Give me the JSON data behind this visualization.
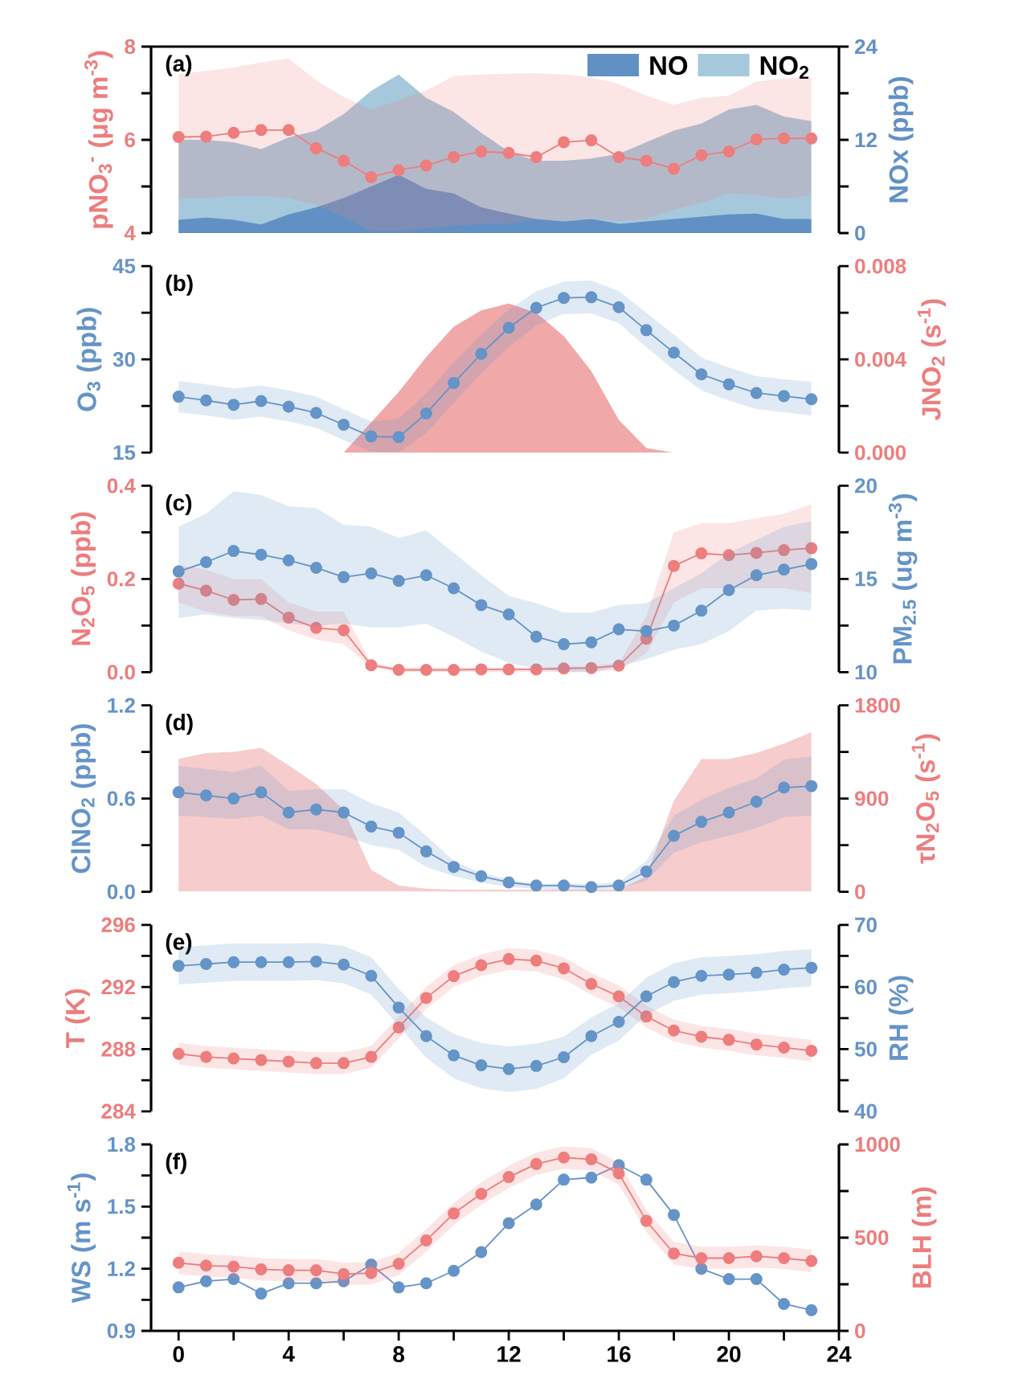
{
  "chart_data": [
    {
      "type": "line",
      "title": "(a)",
      "ylabel": "pNO$_{3}$$^{-}$ (μg m$^{-3}$)",
      "y2label": "NOx (ppb)",
      "x": [
        0,
        1,
        2,
        3,
        4,
        5,
        6,
        7,
        8,
        9,
        10,
        11,
        12,
        13,
        14,
        15,
        16,
        17,
        18,
        19,
        20,
        21,
        22,
        23
      ],
      "xlim": [
        -1,
        24
      ],
      "ylim": [
        4,
        8
      ],
      "yticks": [
        4,
        {
          "value": 5,
          "label": null
        },
        6,
        {
          "value": 7,
          "label": null
        },
        8
      ],
      "y2lim": [
        0,
        24
      ],
      "y2ticks": [
        0,
        {
          "value": 6,
          "label": null
        },
        12,
        {
          "value": 18,
          "label": null
        },
        24
      ],
      "marker": "circle",
      "line_style": "solid",
      "legend": "top right",
      "tick_labels": "y",
      "series": [
        {
          "color": "#ee7d7d",
          "values": [
            6.06,
            6.07,
            6.15,
            6.21,
            6.21,
            5.82,
            5.55,
            5.2,
            5.35,
            5.45,
            5.63,
            5.75,
            5.72,
            5.63,
            5.95,
            5.99,
            5.63,
            5.55,
            5.38,
            5.67,
            5.75,
            6.01,
            6.03,
            6.03
          ],
          "lower": [
            4.75,
            4.75,
            4.8,
            4.8,
            4.75,
            4.6,
            4.35,
            4.05,
            4.05,
            4.1,
            4.15,
            4.2,
            4.2,
            4.3,
            4.25,
            4.32,
            4.25,
            4.3,
            4.5,
            4.65,
            4.85,
            4.82,
            4.74,
            4.8
          ],
          "upper": [
            7.41,
            7.48,
            7.55,
            7.66,
            7.75,
            7.27,
            6.92,
            6.65,
            6.85,
            7.06,
            7.37,
            7.4,
            7.42,
            7.43,
            7.4,
            7.34,
            7.2,
            6.95,
            6.75,
            6.9,
            6.95,
            7.25,
            7.32,
            7.33
          ]
        },
        {
          "name": "NO",
          "type": "area",
          "marker": "none",
          "axis": "y2",
          "color": "#6191c4",
          "values": [
            1.7,
            2.0,
            1.7,
            1.1,
            2.4,
            3.3,
            4.5,
            6.0,
            7.5,
            5.7,
            5.1,
            3.3,
            2.5,
            1.8,
            1.5,
            1.8,
            1.2,
            1.5,
            1.8,
            2.1,
            2.4,
            2.5,
            1.8,
            1.8
          ]
        },
        {
          "name": "NO$_{2}$",
          "type": "area",
          "marker": "none",
          "axis": "y2",
          "color": "#a6c8dc",
          "values": [
            12,
            12,
            11.7,
            10.8,
            12.3,
            13.2,
            15.3,
            18.3,
            20.4,
            17.4,
            15.6,
            12.9,
            10.5,
            9.3,
            9.3,
            9.6,
            10.2,
            11.7,
            13.2,
            14.1,
            15.9,
            16.5,
            15,
            14.4
          ]
        }
      ]
    },
    {
      "type": "line",
      "title": "(b)",
      "ylabel": "O$_{3}$ (ppb)",
      "y2label": "JNO$_{2}$ (s$^{-1}$)",
      "x": [
        0,
        1,
        2,
        3,
        4,
        5,
        6,
        7,
        8,
        9,
        10,
        11,
        12,
        13,
        14,
        15,
        16,
        17,
        18,
        19,
        20,
        21,
        22,
        23
      ],
      "xlim": [
        -1,
        24
      ],
      "ylim": [
        15,
        45
      ],
      "yticks": [
        15,
        {
          "value": 22.5,
          "label": null
        },
        30,
        {
          "value": 37.5,
          "label": null
        },
        45
      ],
      "y2lim": [
        0,
        0.008
      ],
      "y2ticks": [
        {
          "value": 0,
          "label": "0.000"
        },
        {
          "value": 0.002,
          "label": null
        },
        0.004,
        {
          "value": 0.006,
          "label": null
        },
        0.008
      ],
      "marker": "circle",
      "line_style": "solid",
      "tick_labels": "y",
      "series": [
        {
          "color": "#6494c8",
          "values": [
            24.0,
            23.4,
            22.7,
            23.3,
            22.4,
            21.4,
            19.5,
            17.6,
            17.5,
            21.3,
            26.2,
            30.9,
            35.1,
            38.3,
            39.9,
            40.0,
            38.4,
            34.7,
            31.1,
            27.6,
            26.0,
            24.6,
            24.1,
            23.6
          ],
          "lower": [
            21.5,
            21,
            20.3,
            20.8,
            20,
            19,
            17,
            15.2,
            15,
            18.2,
            23,
            27.8,
            32,
            35.5,
            37.3,
            37.4,
            35.8,
            32,
            28.3,
            25,
            23.4,
            22,
            21.5,
            21
          ],
          "upper": [
            26.5,
            26,
            25.3,
            25.8,
            25,
            24,
            22,
            20,
            20.5,
            24.5,
            29.5,
            34,
            38,
            41,
            42.5,
            42.7,
            41,
            37.5,
            34,
            30.3,
            28.7,
            27.3,
            26.8,
            26.4
          ]
        },
        {
          "type": "area",
          "marker": "none",
          "axis": "y2",
          "color": "#f0a8a8",
          "x": [
            6,
            7,
            8,
            9,
            10,
            11,
            12,
            13,
            14,
            15,
            16,
            17,
            18
          ],
          "values": [
            0,
            0.0013,
            0.0026,
            0.0041,
            0.0054,
            0.0061,
            0.0064,
            0.006,
            0.005,
            0.0035,
            0.0014,
            0.0002,
            0
          ]
        }
      ]
    },
    {
      "type": "line",
      "title": "(c)",
      "ylabel": "N$_{2}$O$_{5}$ (ppb)",
      "y2label": "PM$_{2.5}$ (ug m$^{-3}$)",
      "x": [
        0,
        1,
        2,
        3,
        4,
        5,
        6,
        7,
        8,
        9,
        10,
        11,
        12,
        13,
        14,
        15,
        16,
        17,
        18,
        19,
        20,
        21,
        22,
        23
      ],
      "xlim": [
        -1,
        24
      ],
      "ylim": [
        0,
        0.4
      ],
      "yticks": [
        {
          "value": 0,
          "label": "0.0"
        },
        {
          "value": 0.1,
          "label": null
        },
        0.2,
        {
          "value": 0.3,
          "label": null
        },
        0.4
      ],
      "y2lim": [
        10,
        20
      ],
      "y2ticks": [
        10,
        {
          "value": 12.5,
          "label": null
        },
        15,
        {
          "value": 17.5,
          "label": null
        },
        20
      ],
      "marker": "circle",
      "line_style": "solid",
      "tick_labels": "y",
      "series": [
        {
          "color": "#ee7d7d",
          "values": [
            0.19,
            0.175,
            0.155,
            0.157,
            0.117,
            0.095,
            0.09,
            0.015,
            0.005,
            0.005,
            0.005,
            0.006,
            0.006,
            0.006,
            0.008,
            0.009,
            0.014,
            0.072,
            0.228,
            0.255,
            0.251,
            0.256,
            0.262,
            0.266
          ],
          "lower": [
            0.15,
            0.13,
            0.12,
            0.12,
            0.09,
            0.07,
            0.06,
            0.01,
            0,
            0,
            0,
            0,
            0,
            0,
            0,
            0,
            0.005,
            0.04,
            0.15,
            0.18,
            0.18,
            0.18,
            0.18,
            0.17
          ],
          "upper": [
            0.23,
            0.22,
            0.2,
            0.2,
            0.15,
            0.13,
            0.13,
            0.02,
            0.01,
            0.01,
            0.01,
            0.01,
            0.01,
            0.01,
            0.012,
            0.013,
            0.02,
            0.12,
            0.3,
            0.32,
            0.32,
            0.33,
            0.34,
            0.36
          ]
        },
        {
          "axis": "y2",
          "color": "#6494c8",
          "values": [
            15.4,
            15.9,
            16.5,
            16.3,
            16.0,
            15.6,
            15.1,
            15.3,
            14.9,
            15.2,
            14.5,
            13.6,
            13.1,
            11.9,
            11.5,
            11.6,
            12.3,
            12.2,
            12.5,
            13.3,
            14.4,
            15.2,
            15.5,
            15.8
          ],
          "lower": [
            12.9,
            13.1,
            12.9,
            12.8,
            12.6,
            12.5,
            12.6,
            12.4,
            12.4,
            12.6,
            11.9,
            11.1,
            10.5,
            10.2,
            10.0,
            10.0,
            10.3,
            10.7,
            11.2,
            11.5,
            12.2,
            13.3,
            13.4,
            13.3
          ],
          "upper": [
            17.8,
            18.5,
            19.7,
            19.5,
            18.9,
            18.8,
            17.9,
            17.8,
            17.2,
            17.6,
            16.4,
            15.2,
            14.1,
            13.7,
            13.2,
            13.2,
            13.6,
            13.7,
            14.5,
            15.3,
            16.4,
            17.1,
            17.8,
            18.1
          ]
        }
      ]
    },
    {
      "type": "line",
      "title": "(d)",
      "ylabel": "ClNO$_{2}$ (ppb)",
      "y2label": "τN$_{2}$O$_{5}$ (s$^{-1}$)",
      "x": [
        0,
        1,
        2,
        3,
        4,
        5,
        6,
        7,
        8,
        9,
        10,
        11,
        12,
        13,
        14,
        15,
        16,
        17,
        18,
        19,
        20,
        21,
        22,
        23
      ],
      "xlim": [
        -1,
        24
      ],
      "ylim": [
        0,
        1.2
      ],
      "yticks": [
        {
          "value": 0,
          "label": "0.0"
        },
        {
          "value": 0.3,
          "label": null
        },
        0.6,
        {
          "value": 0.9,
          "label": null
        },
        1.2
      ],
      "y2lim": [
        0,
        1800
      ],
      "y2ticks": [
        0,
        {
          "value": 450,
          "label": null
        },
        900,
        {
          "value": 1350,
          "label": null
        },
        1800
      ],
      "marker": "circle",
      "line_style": "solid",
      "tick_labels": "y",
      "series": [
        {
          "color": "#6494c8",
          "values": [
            0.64,
            0.62,
            0.6,
            0.64,
            0.51,
            0.53,
            0.51,
            0.42,
            0.38,
            0.26,
            0.16,
            0.1,
            0.06,
            0.04,
            0.04,
            0.03,
            0.04,
            0.13,
            0.36,
            0.45,
            0.51,
            0.58,
            0.67,
            0.68
          ],
          "lower": [
            0.49,
            0.48,
            0.47,
            0.49,
            0.4,
            0.4,
            0.36,
            0.3,
            0.27,
            0.16,
            0.1,
            0.06,
            0.03,
            0.02,
            0.01,
            0.01,
            0.02,
            0.07,
            0.25,
            0.32,
            0.36,
            0.41,
            0.48,
            0.49
          ],
          "upper": [
            0.81,
            0.79,
            0.77,
            0.81,
            0.65,
            0.66,
            0.66,
            0.57,
            0.51,
            0.36,
            0.2,
            0.12,
            0.08,
            0.05,
            0.055,
            0.05,
            0.06,
            0.2,
            0.49,
            0.59,
            0.67,
            0.73,
            0.85,
            0.87
          ]
        },
        {
          "type": "area",
          "marker": "none",
          "axis": "y2",
          "color": "#f6cccc",
          "values": [
            1280,
            1340,
            1350,
            1390,
            1220,
            1040,
            790,
            210,
            60,
            30,
            20,
            20,
            20,
            20,
            20,
            20,
            20,
            150,
            880,
            1280,
            1280,
            1340,
            1430,
            1540
          ]
        }
      ]
    },
    {
      "type": "line",
      "title": "(e)",
      "ylabel": "T (K)",
      "y2label": "RH (%)",
      "x": [
        0,
        1,
        2,
        3,
        4,
        5,
        6,
        7,
        8,
        9,
        10,
        11,
        12,
        13,
        14,
        15,
        16,
        17,
        18,
        19,
        20,
        21,
        22,
        23
      ],
      "xlim": [
        -1,
        24
      ],
      "ylim": [
        284,
        296
      ],
      "yticks": [
        284,
        {
          "value": 286,
          "label": null
        },
        288,
        {
          "value": 290,
          "label": null
        },
        292,
        {
          "value": 294,
          "label": null
        },
        296
      ],
      "y2lim": [
        40,
        70
      ],
      "y2ticks": [
        40,
        {
          "value": 45,
          "label": null
        },
        50,
        {
          "value": 55,
          "label": null
        },
        60,
        {
          "value": 65,
          "label": null
        },
        70
      ],
      "marker": "circle",
      "line_style": "solid",
      "tick_labels": "y",
      "series": [
        {
          "color": "#ee7d7d",
          "values": [
            287.7,
            287.5,
            287.4,
            287.3,
            287.2,
            287.1,
            287.1,
            287.5,
            289.4,
            291.3,
            292.7,
            293.4,
            293.8,
            293.7,
            293.2,
            292.2,
            291.4,
            290.1,
            289.2,
            288.8,
            288.6,
            288.3,
            288.1,
            287.9
          ],
          "lower": [
            287.0,
            286.8,
            286.7,
            286.6,
            286.5,
            286.4,
            286.4,
            286.8,
            288.7,
            290.6,
            292.0,
            292.7,
            293.1,
            293.0,
            292.5,
            291.5,
            290.7,
            289.4,
            288.5,
            288.1,
            287.9,
            287.6,
            287.45,
            287.2
          ],
          "upper": [
            288.4,
            288.2,
            288.1,
            288.0,
            287.9,
            287.8,
            287.8,
            288.2,
            290.1,
            292.0,
            293.4,
            294.1,
            294.5,
            294.4,
            293.9,
            292.9,
            292.1,
            290.8,
            289.9,
            289.5,
            289.3,
            289.0,
            288.8,
            288.6
          ]
        },
        {
          "axis": "y2",
          "color": "#6494c8",
          "values": [
            63.4,
            63.7,
            64.0,
            64.0,
            64.0,
            64.1,
            63.6,
            61.8,
            56.7,
            52.1,
            49.0,
            47.4,
            46.8,
            47.3,
            48.7,
            52.1,
            54.4,
            58.5,
            60.8,
            61.8,
            62.0,
            62.3,
            62.8,
            63.1
          ],
          "lower": [
            60.4,
            60.7,
            61.0,
            61.0,
            61.0,
            61.1,
            60.6,
            58.8,
            53.7,
            48.6,
            45.3,
            43.7,
            43.1,
            43.6,
            45.3,
            49.1,
            51.4,
            55.5,
            57.8,
            58.8,
            59.0,
            59.3,
            59.8,
            60.1
          ],
          "upper": [
            66.4,
            66.7,
            67.0,
            67.0,
            67.0,
            67.1,
            66.6,
            64.8,
            59.7,
            55.1,
            52.5,
            51.0,
            50.4,
            50.9,
            52.0,
            55.1,
            57.4,
            61.5,
            63.8,
            64.8,
            65.0,
            65.3,
            65.8,
            66.1
          ]
        }
      ]
    },
    {
      "type": "line",
      "title": "(f)",
      "ylabel": "WS (m s$^{-1}$)",
      "y2label": "BLH (m)",
      "x": [
        0,
        1,
        2,
        3,
        4,
        5,
        6,
        7,
        8,
        9,
        10,
        11,
        12,
        13,
        14,
        15,
        16,
        17,
        18,
        19,
        20,
        21,
        22,
        23
      ],
      "xlim": [
        -1,
        24
      ],
      "xticks": [
        0,
        {
          "value": 2,
          "label": null
        },
        4,
        {
          "value": 6,
          "label": null
        },
        8,
        {
          "value": 10,
          "label": null
        },
        12,
        {
          "value": 14,
          "label": null
        },
        16,
        {
          "value": 18,
          "label": null
        },
        20,
        {
          "value": 22,
          "label": null
        },
        24
      ],
      "ylim": [
        0.9,
        1.8
      ],
      "yticks": [
        0.9,
        {
          "value": 1.05,
          "label": null
        },
        1.2,
        {
          "value": 1.35,
          "label": null
        },
        1.5,
        {
          "value": 1.65,
          "label": null
        },
        1.8
      ],
      "y2lim": [
        0,
        1000
      ],
      "y2ticks": [
        0,
        {
          "value": 250,
          "label": null
        },
        500,
        {
          "value": 750,
          "label": null
        },
        1000
      ],
      "marker": "circle",
      "line_style": "solid",
      "series": [
        {
          "color": "#6494c8",
          "values": [
            1.11,
            1.14,
            1.15,
            1.08,
            1.13,
            1.13,
            1.14,
            1.22,
            1.11,
            1.13,
            1.19,
            1.28,
            1.42,
            1.51,
            1.63,
            1.64,
            1.7,
            1.63,
            1.46,
            1.2,
            1.15,
            1.15,
            1.03,
            1.0
          ]
        },
        {
          "axis": "y2",
          "color": "#ee7d7d",
          "values": [
            365,
            350,
            345,
            330,
            325,
            325,
            305,
            310,
            360,
            485,
            630,
            735,
            825,
            895,
            930,
            920,
            845,
            590,
            415,
            390,
            390,
            400,
            390,
            375
          ],
          "lower": [
            305,
            291,
            284,
            270,
            266,
            266,
            246,
            249,
            298,
            426,
            568,
            676,
            766,
            836,
            870,
            860,
            784,
            530,
            357,
            332,
            332,
            339,
            332,
            315
          ],
          "upper": [
            425,
            411,
            404,
            390,
            386,
            386,
            366,
            369,
            418,
            546,
            688,
            796,
            886,
            956,
            990,
            980,
            904,
            650,
            477,
            452,
            452,
            459,
            452,
            435
          ]
        }
      ]
    }
  ]
}
